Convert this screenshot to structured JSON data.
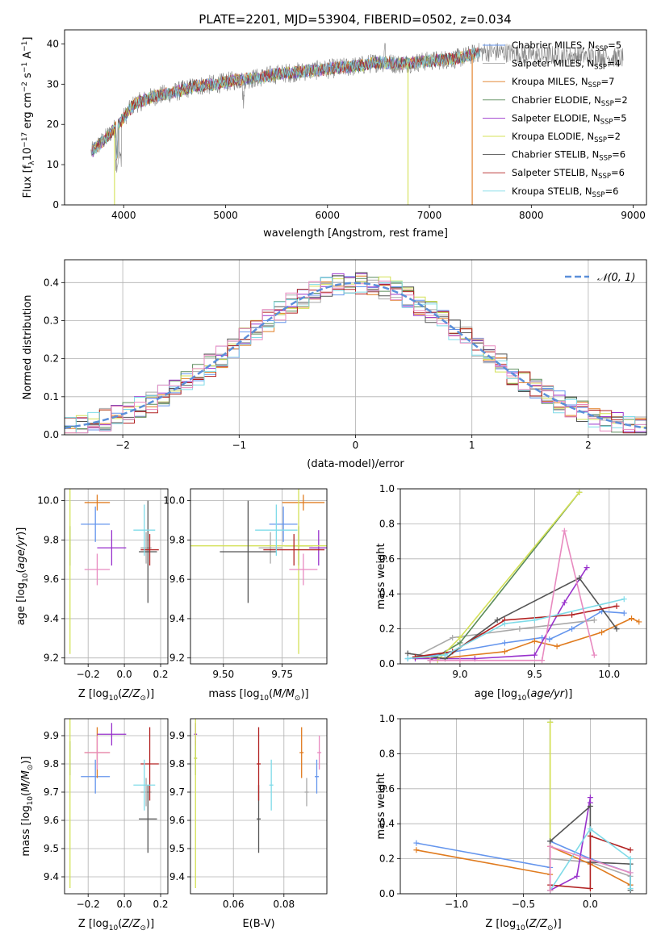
{
  "figure_title": "PLATE=2201, MJD=53904, FIBERID=0502, z=0.034",
  "colors": {
    "Chabrier MILES": "#6495ed",
    "Salpeter MILES": "#a9a9a9",
    "Kroupa MILES": "#e07b1f",
    "Chabrier ELODIE": "#5a8c5a",
    "Salpeter ELODIE": "#9932cc",
    "Kroupa ELODIE": "#d4e157",
    "Chabrier STELIB": "#555555",
    "Salpeter STELIB": "#b22222",
    "Kroupa STELIB": "#7fdbe8",
    "extra_pink": "#e88ac0",
    "normal_curve": "#5b8fd9"
  },
  "chart_data": [
    {
      "id": "spectrum",
      "type": "line",
      "xlabel": "wavelength [Angstrom, rest frame]",
      "ylabel_parts": [
        "Flux [f",
        "λ",
        "10",
        "−17",
        " erg cm",
        "−2",
        " s",
        "−1",
        " A",
        "−1",
        "]"
      ],
      "xlim": [
        3420,
        9130
      ],
      "ylim": [
        0,
        43.5
      ],
      "xticks": [
        4000,
        5000,
        6000,
        7000,
        8000,
        9000
      ],
      "yticks": [
        0,
        10,
        20,
        30,
        40
      ],
      "grid": false,
      "legend_position": "right",
      "legend": [
        {
          "base": "Chabrier MILES, N",
          "sub": "SSP",
          "tail": "=5"
        },
        {
          "base": "Salpeter MILES, N",
          "sub": "SSP",
          "tail": "=4"
        },
        {
          "base": "Kroupa MILES, N",
          "sub": "SSP",
          "tail": "=7"
        },
        {
          "base": "Chabrier ELODIE, N",
          "sub": "SSP",
          "tail": "=2"
        },
        {
          "base": "Salpeter ELODIE, N",
          "sub": "SSP",
          "tail": "=5"
        },
        {
          "base": "Kroupa ELODIE, N",
          "sub": "SSP",
          "tail": "=2"
        },
        {
          "base": "Chabrier STELIB, N",
          "sub": "SSP",
          "tail": "=6"
        },
        {
          "base": "Salpeter STELIB, N",
          "sub": "SSP",
          "tail": "=6"
        },
        {
          "base": "Kroupa STELIB, N",
          "sub": "SSP",
          "tail": "=6"
        }
      ],
      "observed_continuum": [
        [
          3680,
          13
        ],
        [
          3800,
          16
        ],
        [
          3950,
          20
        ],
        [
          4100,
          25
        ],
        [
          4300,
          27
        ],
        [
          4500,
          28
        ],
        [
          4700,
          29.5
        ],
        [
          4900,
          30
        ],
        [
          5100,
          31
        ],
        [
          5300,
          31.5
        ],
        [
          5500,
          32.5
        ],
        [
          5700,
          33
        ],
        [
          5900,
          33.5
        ],
        [
          6100,
          34
        ],
        [
          6300,
          34.5
        ],
        [
          6500,
          35.5
        ],
        [
          6700,
          35
        ],
        [
          6900,
          35.5
        ],
        [
          7100,
          36
        ],
        [
          7300,
          36.5
        ],
        [
          7500,
          38
        ],
        [
          7700,
          38
        ],
        [
          7900,
          37.5
        ],
        [
          8100,
          37
        ],
        [
          8300,
          37.2
        ],
        [
          8500,
          37
        ],
        [
          8700,
          36.8
        ],
        [
          8900,
          36.5
        ]
      ],
      "model_drops": [
        [
          3910,
          "Kroupa ELODIE"
        ],
        [
          6790,
          "Kroupa ELODIE"
        ],
        [
          7420,
          "Kroupa MILES"
        ]
      ]
    },
    {
      "id": "residuals",
      "type": "area",
      "xlabel": "(data-model)/error",
      "ylabel": "Normed distribution",
      "xlim": [
        -2.5,
        2.5
      ],
      "ylim": [
        0,
        0.46
      ],
      "xticks": [
        -2,
        -1,
        0,
        1,
        2
      ],
      "yticks": [
        0.0,
        0.1,
        0.2,
        0.3,
        0.4
      ],
      "grid": true,
      "legend_position": "top-right",
      "legend_label": "𝒩(0, 1)",
      "bin_width": 0.1
    },
    {
      "id": "z_age",
      "type": "scatter",
      "xlabel": "Z [log10(Z/Z⊙)]",
      "ylabel": "age  [log10(age/yr)]",
      "xlim": [
        -0.33,
        0.24
      ],
      "ylim": [
        9.17,
        10.06
      ],
      "xticks": [
        -0.2,
        0.0,
        0.2
      ],
      "yticks": [
        9.2,
        9.4,
        9.6,
        9.8,
        10.0
      ],
      "grid": true
    },
    {
      "id": "mass_age",
      "type": "scatter",
      "xlabel": "mass [log10(M/M⊙)]",
      "xlim": [
        9.36,
        9.94
      ],
      "ylim": [
        9.17,
        10.06
      ],
      "xticks": [
        9.5,
        9.75
      ],
      "yticks": [
        9.2,
        9.4,
        9.6,
        9.8,
        10.0
      ],
      "grid": true
    },
    {
      "id": "age_weight",
      "type": "line",
      "xlabel": "age  [log10(age/yr)]",
      "ylabel": "mass weight",
      "xlim": [
        8.6,
        10.25
      ],
      "ylim": [
        0,
        1.0
      ],
      "xticks": [
        9.0,
        9.5,
        10.0
      ],
      "yticks": [
        0.0,
        0.2,
        0.4,
        0.6,
        0.8,
        1.0
      ],
      "grid": true
    },
    {
      "id": "z_mass",
      "type": "scatter",
      "xlabel": "Z [log10(Z/Z⊙)]",
      "ylabel": "mass [log10(M/M⊙)]",
      "xlim": [
        -0.33,
        0.24
      ],
      "ylim": [
        9.34,
        9.96
      ],
      "xticks": [
        -0.2,
        0.0,
        0.2
      ],
      "yticks": [
        9.4,
        9.5,
        9.6,
        9.7,
        9.8,
        9.9
      ],
      "grid": true
    },
    {
      "id": "ebv_mass",
      "type": "scatter",
      "xlabel": "E(B-V)",
      "xlim": [
        0.043,
        0.097
      ],
      "ylim": [
        9.34,
        9.96
      ],
      "xticks": [
        0.06,
        0.08
      ],
      "yticks": [
        9.4,
        9.5,
        9.6,
        9.7,
        9.8,
        9.9
      ],
      "grid": true
    },
    {
      "id": "z_weight",
      "type": "line",
      "xlabel": "Z [log10(Z/Z⊙)]",
      "ylabel": "mass weight",
      "xlim": [
        -1.42,
        0.42
      ],
      "ylim": [
        0,
        1.0
      ],
      "xticks": [
        -1.0,
        -0.5,
        0.0
      ],
      "yticks": [
        0.0,
        0.2,
        0.4,
        0.6,
        0.8,
        1.0
      ],
      "grid": true
    }
  ],
  "solutions": [
    {
      "name": "Chabrier MILES",
      "color_key": "Chabrier MILES",
      "Z": -0.16,
      "dZ": 0.08,
      "age": 9.88,
      "dage": 0.09,
      "mass": 9.755,
      "dmass": 0.06,
      "ebv": 0.093,
      "debv": 0.0008,
      "age_w": [
        [
          8.65,
          0.03
        ],
        [
          8.9,
          0.06
        ],
        [
          9.3,
          0.12
        ],
        [
          9.55,
          0.15
        ],
        [
          9.6,
          0.14
        ],
        [
          9.75,
          0.2
        ],
        [
          9.95,
          0.3
        ],
        [
          10.1,
          0.29
        ]
      ],
      "z_w": [
        [
          -1.3,
          0.29
        ],
        [
          -0.3,
          0.15
        ],
        [
          -0.3,
          0.3
        ],
        [
          0.0,
          0.2
        ],
        [
          0.3,
          0.12
        ],
        [
          0.3,
          0.05
        ]
      ]
    },
    {
      "name": "Salpeter MILES",
      "color_key": "Salpeter MILES",
      "Z": 0.12,
      "dZ": 0.03,
      "age": 9.76,
      "dage": 0.08,
      "mass": 9.7,
      "dmass": 0.05,
      "ebv": 0.089,
      "debv": 0.0008,
      "age_w": [
        [
          8.7,
          0.04
        ],
        [
          8.95,
          0.15
        ],
        [
          9.4,
          0.2
        ],
        [
          9.9,
          0.25
        ]
      ],
      "z_w": [
        [
          -0.3,
          0.2
        ],
        [
          0.0,
          0.18
        ],
        [
          0.3,
          0.1
        ]
      ]
    },
    {
      "name": "Kroupa MILES",
      "color_key": "Kroupa MILES",
      "Z": -0.15,
      "dZ": 0.07,
      "age": 9.99,
      "dage": 0.04,
      "mass": 9.84,
      "dmass": 0.09,
      "ebv": 0.087,
      "debv": 0.0008,
      "age_w": [
        [
          8.7,
          0.04
        ],
        [
          8.85,
          0.03
        ],
        [
          9.3,
          0.07
        ],
        [
          9.5,
          0.13
        ],
        [
          9.65,
          0.1
        ],
        [
          9.95,
          0.18
        ],
        [
          10.15,
          0.26
        ],
        [
          10.2,
          0.24
        ]
      ],
      "z_w": [
        [
          -1.3,
          0.25
        ],
        [
          -0.3,
          0.11
        ],
        [
          -0.3,
          0.27
        ],
        [
          0.0,
          0.17
        ],
        [
          0.3,
          0.05
        ]
      ]
    },
    {
      "name": "Chabrier ELODIE",
      "color_key": "Chabrier ELODIE",
      "Z": -0.3,
      "dZ": 0.003,
      "age": 9.77,
      "dage": 0.1,
      "mass": 9.82,
      "dmass": 0.06,
      "ebv": 0.045,
      "debv": 0.0006,
      "age_w": [
        [
          8.8,
          0.02
        ],
        [
          9.0,
          0.12
        ],
        [
          9.8,
          0.98
        ]
      ],
      "z_w": [
        [
          -0.3,
          0.02
        ],
        [
          -0.3,
          0.98
        ]
      ]
    },
    {
      "name": "Salpeter ELODIE",
      "color_key": "Salpeter ELODIE",
      "Z": -0.07,
      "dZ": 0.08,
      "age": 9.76,
      "dage": 0.09,
      "mass": 9.905,
      "dmass": 0.04,
      "ebv": 0.045,
      "debv": 0.0006,
      "age_w": [
        [
          8.7,
          0.03
        ],
        [
          9.1,
          0.03
        ],
        [
          9.5,
          0.05
        ],
        [
          9.7,
          0.35
        ],
        [
          9.85,
          0.55
        ]
      ],
      "z_w": [
        [
          -0.3,
          0.02
        ],
        [
          -0.1,
          0.1
        ],
        [
          0.0,
          0.55
        ],
        [
          0.0,
          0.52
        ]
      ]
    },
    {
      "name": "Kroupa ELODIE",
      "color_key": "Kroupa ELODIE",
      "Z": -0.3,
      "dZ": 0.003,
      "age": 9.77,
      "dage": 0.55,
      "mass": 9.82,
      "dmass": 0.46,
      "ebv": 0.045,
      "debv": 0.0006,
      "age_w": [
        [
          8.85,
          0.02
        ],
        [
          9.0,
          0.15
        ],
        [
          9.8,
          0.98
        ]
      ],
      "z_w": [
        [
          -0.3,
          0.02
        ],
        [
          -0.3,
          0.98
        ]
      ]
    },
    {
      "name": "Chabrier STELIB",
      "color_key": "Chabrier STELIB",
      "Z": 0.13,
      "dZ": 0.05,
      "age": 9.74,
      "dage": 0.26,
      "mass": 9.605,
      "dmass": 0.12,
      "ebv": 0.07,
      "debv": 0.0008,
      "age_w": [
        [
          8.65,
          0.06
        ],
        [
          8.9,
          0.03
        ],
        [
          9.25,
          0.25
        ],
        [
          9.8,
          0.49
        ],
        [
          10.05,
          0.2
        ]
      ],
      "z_w": [
        [
          -0.3,
          0.02
        ],
        [
          -0.3,
          0.3
        ],
        [
          0.0,
          0.5
        ],
        [
          0.0,
          0.18
        ],
        [
          0.3,
          0.17
        ],
        [
          0.3,
          0.02
        ]
      ]
    },
    {
      "name": "Salpeter STELIB",
      "color_key": "Salpeter STELIB",
      "Z": 0.14,
      "dZ": 0.05,
      "age": 9.75,
      "dage": 0.08,
      "mass": 9.8,
      "dmass": 0.13,
      "ebv": 0.07,
      "debv": 0.0008,
      "age_w": [
        [
          8.7,
          0.04
        ],
        [
          8.95,
          0.07
        ],
        [
          9.3,
          0.25
        ],
        [
          9.75,
          0.28
        ],
        [
          10.05,
          0.33
        ]
      ],
      "z_w": [
        [
          -0.3,
          0.05
        ],
        [
          0.0,
          0.03
        ],
        [
          0.0,
          0.33
        ],
        [
          0.3,
          0.25
        ]
      ]
    },
    {
      "name": "Kroupa STELIB",
      "color_key": "Kroupa STELIB",
      "Z": 0.11,
      "dZ": 0.06,
      "age": 9.85,
      "dage": 0.13,
      "mass": 9.725,
      "dmass": 0.09,
      "ebv": 0.075,
      "debv": 0.0008,
      "age_w": [
        [
          8.65,
          0.03
        ],
        [
          8.9,
          0.05
        ],
        [
          9.3,
          0.23
        ],
        [
          9.5,
          0.25
        ],
        [
          10.1,
          0.37
        ]
      ],
      "z_w": [
        [
          -0.3,
          0.02
        ],
        [
          0.0,
          0.37
        ],
        [
          0.3,
          0.2
        ],
        [
          0.3,
          0.03
        ]
      ]
    },
    {
      "name": "extra pink",
      "color_key": "extra_pink",
      "Z": -0.15,
      "dZ": 0.07,
      "age": 9.65,
      "dage": 0.08,
      "mass": 9.84,
      "dmass": 0.06,
      "ebv": 0.094,
      "debv": 0.0008,
      "age_w": [
        [
          8.8,
          0.02
        ],
        [
          9.0,
          0.02
        ],
        [
          9.55,
          0.02
        ],
        [
          9.7,
          0.76
        ],
        [
          9.9,
          0.05
        ]
      ],
      "z_w": [
        [
          -0.3,
          0.02
        ],
        [
          -0.3,
          0.27
        ],
        [
          0.3,
          0.12
        ]
      ]
    }
  ]
}
